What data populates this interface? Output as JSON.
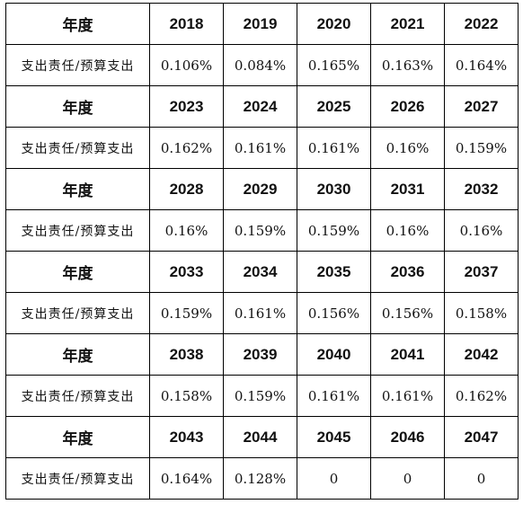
{
  "table": {
    "year_label": "年度",
    "ratio_label": "支出责任/预算支出",
    "blocks": [
      {
        "years": [
          "2018",
          "2019",
          "2020",
          "2021",
          "2022"
        ],
        "values": [
          "0.106%",
          "0.084%",
          "0.165%",
          "0.163%",
          "0.164%"
        ]
      },
      {
        "years": [
          "2023",
          "2024",
          "2025",
          "2026",
          "2027"
        ],
        "values": [
          "0.162%",
          "0.161%",
          "0.161%",
          "0.16%",
          "0.159%"
        ]
      },
      {
        "years": [
          "2028",
          "2029",
          "2030",
          "2031",
          "2032"
        ],
        "values": [
          "0.16%",
          "0.159%",
          "0.159%",
          "0.16%",
          "0.16%"
        ]
      },
      {
        "years": [
          "2033",
          "2034",
          "2035",
          "2036",
          "2037"
        ],
        "values": [
          "0.159%",
          "0.161%",
          "0.156%",
          "0.156%",
          "0.158%"
        ]
      },
      {
        "years": [
          "2038",
          "2039",
          "2040",
          "2041",
          "2042"
        ],
        "values": [
          "0.158%",
          "0.159%",
          "0.161%",
          "0.161%",
          "0.162%"
        ]
      },
      {
        "years": [
          "2043",
          "2044",
          "2045",
          "2046",
          "2047"
        ],
        "values": [
          "0.164%",
          "0.128%",
          "0",
          "0",
          "0"
        ]
      }
    ]
  }
}
